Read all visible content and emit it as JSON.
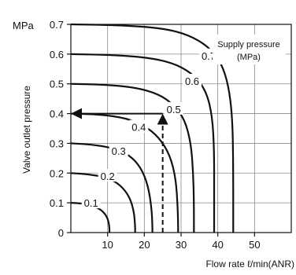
{
  "chart_data": {
    "type": "line",
    "title": "",
    "y_unit": "MPa",
    "ylabel": "Valve outlet pressure",
    "xlabel": "Flow rate ℓ/min(ANR)",
    "xlim": [
      0,
      60
    ],
    "ylim": [
      0,
      0.7
    ],
    "x_ticks": [
      10,
      20,
      30,
      40,
      50
    ],
    "y_ticks": [
      0,
      0.1,
      0.2,
      0.3,
      0.4,
      0.5,
      0.6,
      0.7
    ],
    "y_tick_labels": [
      "0",
      "0.1",
      "0.2",
      "0.3",
      "0.4",
      "0.5",
      "0.6",
      "0.7"
    ],
    "grid": true,
    "legend": {
      "title_line1": "Supply pressure",
      "title_line2": "(MPa)",
      "placement": "top-right"
    },
    "series": [
      {
        "name": "0.1",
        "points": [
          [
            0,
            0.1
          ],
          [
            3,
            0.098
          ],
          [
            6,
            0.09
          ],
          [
            8.5,
            0.075
          ],
          [
            10,
            0.05
          ],
          [
            10.5,
            0.02
          ],
          [
            10.5,
            0
          ]
        ]
      },
      {
        "name": "0.2",
        "points": [
          [
            0,
            0.2
          ],
          [
            5,
            0.196
          ],
          [
            10,
            0.185
          ],
          [
            13.5,
            0.16
          ],
          [
            16,
            0.12
          ],
          [
            17.2,
            0.07
          ],
          [
            17.5,
            0.02
          ],
          [
            17.5,
            0
          ]
        ]
      },
      {
        "name": "0.3",
        "points": [
          [
            0,
            0.3
          ],
          [
            6,
            0.296
          ],
          [
            12,
            0.283
          ],
          [
            16,
            0.26
          ],
          [
            19,
            0.22
          ],
          [
            21,
            0.16
          ],
          [
            22,
            0.08
          ],
          [
            22.2,
            0.02
          ],
          [
            22.2,
            0
          ]
        ]
      },
      {
        "name": "0.4",
        "points": [
          [
            0,
            0.4
          ],
          [
            8,
            0.397
          ],
          [
            15,
            0.385
          ],
          [
            20,
            0.36
          ],
          [
            24,
            0.32
          ],
          [
            27,
            0.26
          ],
          [
            28.6,
            0.18
          ],
          [
            29.1,
            0.08
          ],
          [
            29.2,
            0.02
          ],
          [
            29.2,
            0
          ]
        ]
      },
      {
        "name": "0.5",
        "points": [
          [
            0,
            0.5
          ],
          [
            10,
            0.497
          ],
          [
            18,
            0.487
          ],
          [
            24,
            0.465
          ],
          [
            28,
            0.43
          ],
          [
            31,
            0.38
          ],
          [
            32.7,
            0.3
          ],
          [
            33.3,
            0.2
          ],
          [
            33.5,
            0.1
          ],
          [
            33.5,
            0
          ]
        ]
      },
      {
        "name": "0.6",
        "points": [
          [
            0,
            0.6
          ],
          [
            12,
            0.597
          ],
          [
            22,
            0.587
          ],
          [
            29,
            0.565
          ],
          [
            34,
            0.525
          ],
          [
            37,
            0.47
          ],
          [
            38.5,
            0.39
          ],
          [
            39,
            0.28
          ],
          [
            39,
            0.15
          ],
          [
            39,
            0
          ]
        ]
      },
      {
        "name": "0.7",
        "points": [
          [
            0,
            0.7
          ],
          [
            14,
            0.697
          ],
          [
            25,
            0.687
          ],
          [
            32,
            0.665
          ],
          [
            37.5,
            0.625
          ],
          [
            41,
            0.57
          ],
          [
            43,
            0.49
          ],
          [
            44,
            0.38
          ],
          [
            44.2,
            0.22
          ],
          [
            44.2,
            0
          ]
        ]
      }
    ],
    "curve_labels": [
      {
        "text": "0.1",
        "x": 5.5,
        "y": 0.1
      },
      {
        "text": "0.2",
        "x": 10,
        "y": 0.19
      },
      {
        "text": "0.3",
        "x": 13,
        "y": 0.275
      },
      {
        "text": "0.4",
        "x": 18.5,
        "y": 0.355
      },
      {
        "text": "0.5",
        "x": 28,
        "y": 0.415
      },
      {
        "text": "0.6",
        "x": 33,
        "y": 0.51
      },
      {
        "text": "0.7",
        "x": 37.5,
        "y": 0.595
      }
    ],
    "example_path": {
      "points": [
        [
          25,
          0
        ],
        [
          25,
          0.4
        ],
        [
          0,
          0.4
        ]
      ],
      "style": "dashed-with-arrows"
    }
  }
}
